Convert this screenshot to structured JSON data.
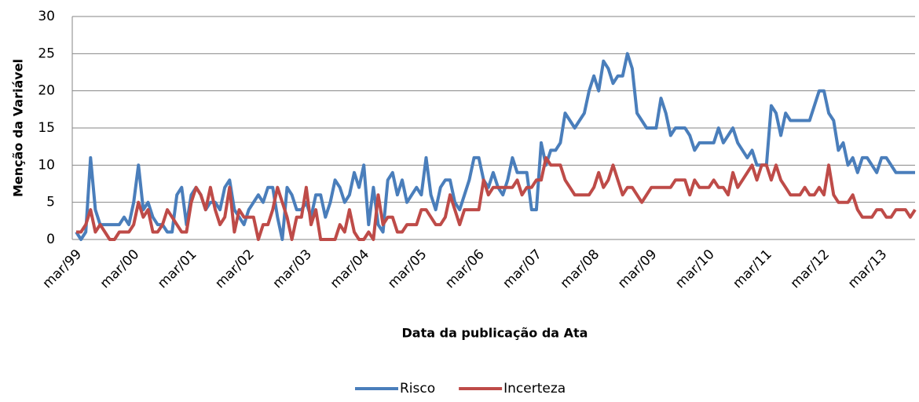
{
  "chart_data": {
    "type": "line",
    "x_label": "Data da publicação da Ata",
    "y_label": "Menção da Variável",
    "categories": [
      "mar/99",
      null,
      null,
      null,
      null,
      null,
      null,
      null,
      null,
      null,
      null,
      null,
      "mar/00",
      null,
      null,
      null,
      null,
      null,
      null,
      null,
      null,
      null,
      null,
      null,
      "mar/01",
      null,
      null,
      null,
      null,
      null,
      null,
      null,
      null,
      null,
      null,
      null,
      "mar/02",
      null,
      null,
      null,
      null,
      null,
      null,
      null,
      null,
      null,
      null,
      null,
      "mar/03",
      null,
      null,
      null,
      null,
      null,
      null,
      null,
      null,
      null,
      null,
      null,
      "mar/04",
      null,
      null,
      null,
      null,
      null,
      null,
      null,
      null,
      null,
      null,
      null,
      "mar/05",
      null,
      null,
      null,
      null,
      null,
      null,
      null,
      null,
      null,
      null,
      null,
      "mar/06",
      null,
      null,
      null,
      null,
      null,
      null,
      null,
      null,
      null,
      null,
      null,
      "mar/07",
      null,
      null,
      null,
      null,
      null,
      null,
      null,
      null,
      null,
      null,
      null,
      "mar/08",
      null,
      null,
      null,
      null,
      null,
      null,
      null,
      null,
      null,
      null,
      null,
      "mar/09",
      null,
      null,
      null,
      null,
      null,
      null,
      null,
      null,
      null,
      null,
      null,
      "mar/10",
      null,
      null,
      null,
      null,
      null,
      null,
      null,
      null,
      null,
      null,
      null,
      "mar/11",
      null,
      null,
      null,
      null,
      null,
      null,
      null,
      null,
      null,
      null,
      null,
      "mar/12",
      null,
      null,
      null,
      null,
      null,
      null,
      null,
      null,
      null,
      null,
      null,
      "mar/13",
      null,
      null,
      null,
      null,
      null,
      null,
      null
    ],
    "series": [
      {
        "name": "Risco",
        "color": "#4a7ebb",
        "values": [
          1,
          0,
          1,
          11,
          4,
          2,
          2,
          2,
          2,
          2,
          3,
          2,
          5,
          10,
          4,
          5,
          3,
          2,
          2,
          1,
          1,
          6,
          7,
          2,
          6,
          7,
          6,
          4,
          5,
          5,
          4,
          7,
          8,
          4,
          3,
          2,
          4,
          5,
          6,
          5,
          7,
          7,
          3,
          0,
          7,
          6,
          4,
          4,
          5,
          3,
          6,
          6,
          3,
          5,
          8,
          7,
          5,
          6,
          9,
          7,
          10,
          2,
          7,
          2,
          1,
          8,
          9,
          6,
          8,
          5,
          6,
          7,
          6,
          11,
          6,
          4,
          7,
          8,
          8,
          5,
          4,
          6,
          8,
          11,
          11,
          8,
          7,
          9,
          7,
          6,
          8,
          11,
          9,
          9,
          9,
          4,
          4,
          13,
          10,
          12,
          12,
          13,
          17,
          16,
          15,
          16,
          17,
          20,
          22,
          20,
          24,
          23,
          21,
          22,
          22,
          25,
          23,
          17,
          16,
          15,
          15,
          15,
          19,
          17,
          14,
          15,
          15,
          15,
          14,
          12,
          13,
          13,
          13,
          13,
          15,
          13,
          14,
          15,
          13,
          12,
          11,
          12,
          10,
          10,
          10,
          18,
          17,
          14,
          17,
          16,
          16,
          16,
          16,
          16,
          18,
          20,
          20,
          17,
          16,
          12,
          13,
          10,
          11,
          9,
          11,
          11,
          10,
          9,
          11,
          11,
          10,
          9,
          9,
          9,
          9,
          9
        ]
      },
      {
        "name": "Incerteza",
        "color": "#be4b48",
        "values": [
          1,
          1,
          2,
          4,
          1,
          2,
          1,
          0,
          0,
          1,
          1,
          1,
          2,
          5,
          3,
          4,
          1,
          1,
          2,
          4,
          3,
          2,
          1,
          1,
          5,
          7,
          6,
          4,
          7,
          4,
          2,
          3,
          7,
          1,
          4,
          3,
          3,
          3,
          0,
          2,
          2,
          4,
          7,
          5,
          3,
          0,
          3,
          3,
          7,
          2,
          4,
          0,
          0,
          0,
          0,
          2,
          1,
          4,
          1,
          0,
          0,
          1,
          0,
          6,
          2,
          3,
          3,
          1,
          1,
          2,
          2,
          2,
          4,
          4,
          3,
          2,
          2,
          3,
          6,
          4,
          2,
          4,
          4,
          4,
          4,
          8,
          6,
          7,
          7,
          7,
          7,
          7,
          8,
          6,
          7,
          7,
          8,
          8,
          11,
          10,
          10,
          10,
          8,
          7,
          6,
          6,
          6,
          6,
          7,
          9,
          7,
          8,
          10,
          8,
          6,
          7,
          7,
          6,
          5,
          6,
          7,
          7,
          7,
          7,
          7,
          8,
          8,
          8,
          6,
          8,
          7,
          7,
          7,
          8,
          7,
          7,
          6,
          9,
          7,
          8,
          9,
          10,
          8,
          10,
          10,
          8,
          10,
          8,
          7,
          6,
          6,
          6,
          7,
          6,
          6,
          7,
          6,
          10,
          6,
          5,
          5,
          5,
          6,
          4,
          3,
          3,
          3,
          4,
          4,
          3,
          3,
          4,
          4,
          4,
          3,
          4
        ]
      }
    ],
    "ylim": [
      0,
      30
    ],
    "yticks": [
      0,
      5,
      10,
      15,
      20,
      25,
      30
    ],
    "grid": true,
    "legend": "bottom"
  }
}
